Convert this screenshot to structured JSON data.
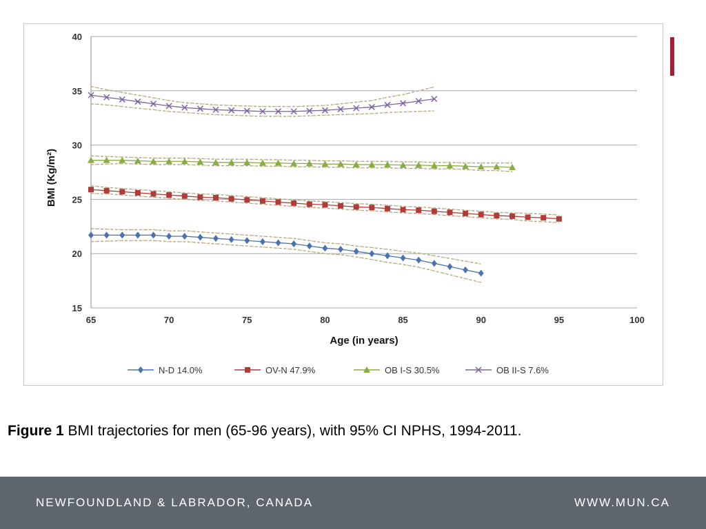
{
  "colors": {
    "accent": "#a31f34",
    "footer_bg": "#5e656d",
    "grid": "#a6a6a6",
    "ci_line": "#9a9a9a",
    "ci_dots": "#e8d48a"
  },
  "chart_data": {
    "type": "line",
    "title": "",
    "xlabel": "Age (in years)",
    "ylabel": "BMI (Kg/m²)",
    "xlim": [
      65,
      100
    ],
    "ylim": [
      15,
      40
    ],
    "xticks": [
      65,
      70,
      75,
      80,
      85,
      90,
      95,
      100
    ],
    "yticks": [
      15,
      20,
      25,
      30,
      35,
      40
    ],
    "legend_position": "bottom",
    "grid": true,
    "series": [
      {
        "name": "N-D 14.0%",
        "color": "#4a72b0",
        "marker": "diamond-icon",
        "x": [
          65,
          66,
          67,
          68,
          69,
          70,
          71,
          72,
          73,
          74,
          75,
          76,
          77,
          78,
          79,
          80,
          81,
          82,
          83,
          84,
          85,
          86,
          87,
          88,
          89,
          90
        ],
        "y": [
          21.7,
          21.7,
          21.7,
          21.7,
          21.7,
          21.6,
          21.6,
          21.5,
          21.4,
          21.3,
          21.2,
          21.1,
          21.0,
          20.9,
          20.7,
          20.5,
          20.4,
          20.2,
          20.0,
          19.8,
          19.6,
          19.4,
          19.1,
          18.8,
          18.5,
          18.2
        ],
        "ci_width": [
          0.6,
          0.55,
          0.5,
          0.5,
          0.5,
          0.5,
          0.5,
          0.5,
          0.5,
          0.5,
          0.5,
          0.5,
          0.5,
          0.5,
          0.5,
          0.5,
          0.5,
          0.5,
          0.55,
          0.6,
          0.6,
          0.65,
          0.7,
          0.75,
          0.8,
          0.85
        ]
      },
      {
        "name": "OV-N 47.9%",
        "color": "#b03c3a",
        "marker": "square-icon",
        "x": [
          65,
          66,
          67,
          68,
          69,
          70,
          71,
          72,
          73,
          74,
          75,
          76,
          77,
          78,
          79,
          80,
          81,
          82,
          83,
          84,
          85,
          86,
          87,
          88,
          89,
          90,
          91,
          92,
          93,
          94,
          95
        ],
        "y": [
          25.9,
          25.8,
          25.7,
          25.6,
          25.5,
          25.4,
          25.3,
          25.2,
          25.15,
          25.05,
          24.95,
          24.85,
          24.75,
          24.65,
          24.55,
          24.5,
          24.4,
          24.3,
          24.25,
          24.15,
          24.05,
          24.0,
          23.9,
          23.8,
          23.7,
          23.6,
          23.5,
          23.45,
          23.35,
          23.3,
          23.2
        ],
        "ci_width": [
          0.35,
          0.3,
          0.3,
          0.3,
          0.3,
          0.3,
          0.3,
          0.3,
          0.3,
          0.3,
          0.3,
          0.3,
          0.3,
          0.3,
          0.3,
          0.3,
          0.3,
          0.3,
          0.3,
          0.3,
          0.3,
          0.3,
          0.3,
          0.3,
          0.3,
          0.3,
          0.3,
          0.3,
          0.35,
          0.35,
          0.35
        ]
      },
      {
        "name": "OB I-S 30.5%",
        "color": "#8aac46",
        "marker": "triangle-icon",
        "x": [
          65,
          66,
          67,
          68,
          69,
          70,
          71,
          72,
          73,
          74,
          75,
          76,
          77,
          78,
          79,
          80,
          81,
          82,
          83,
          84,
          85,
          86,
          87,
          88,
          89,
          90,
          91,
          92
        ],
        "y": [
          28.6,
          28.6,
          28.6,
          28.55,
          28.5,
          28.5,
          28.5,
          28.45,
          28.4,
          28.4,
          28.4,
          28.35,
          28.35,
          28.3,
          28.3,
          28.25,
          28.25,
          28.2,
          28.2,
          28.2,
          28.15,
          28.15,
          28.1,
          28.1,
          28.05,
          28.0,
          28.0,
          27.95
        ],
        "ci_width": [
          0.4,
          0.35,
          0.3,
          0.3,
          0.3,
          0.3,
          0.3,
          0.3,
          0.3,
          0.3,
          0.3,
          0.3,
          0.3,
          0.3,
          0.3,
          0.3,
          0.3,
          0.3,
          0.3,
          0.3,
          0.3,
          0.3,
          0.3,
          0.3,
          0.3,
          0.35,
          0.35,
          0.4
        ]
      },
      {
        "name": "OB II-S 7.6%",
        "color": "#7e649e",
        "marker": "cross-icon",
        "x": [
          65,
          66,
          67,
          68,
          69,
          70,
          71,
          72,
          73,
          74,
          75,
          76,
          77,
          78,
          79,
          80,
          81,
          82,
          83,
          84,
          85,
          86,
          87
        ],
        "y": [
          34.6,
          34.4,
          34.2,
          34.0,
          33.8,
          33.6,
          33.45,
          33.35,
          33.25,
          33.2,
          33.15,
          33.1,
          33.1,
          33.1,
          33.15,
          33.2,
          33.3,
          33.4,
          33.5,
          33.7,
          33.85,
          34.05,
          34.25
        ],
        "ci_width": [
          0.8,
          0.7,
          0.65,
          0.6,
          0.55,
          0.5,
          0.45,
          0.45,
          0.45,
          0.45,
          0.45,
          0.45,
          0.45,
          0.45,
          0.45,
          0.45,
          0.5,
          0.55,
          0.6,
          0.7,
          0.8,
          0.95,
          1.1
        ]
      }
    ]
  },
  "caption": {
    "label": "Figure  1",
    "text": " BMI trajectories for men (65-96 years), with 95% CI NPHS, 1994-2011."
  },
  "footer": {
    "left": "NEWFOUNDLAND & LABRADOR, CANADA",
    "right": "WWW.MUN.CA"
  }
}
